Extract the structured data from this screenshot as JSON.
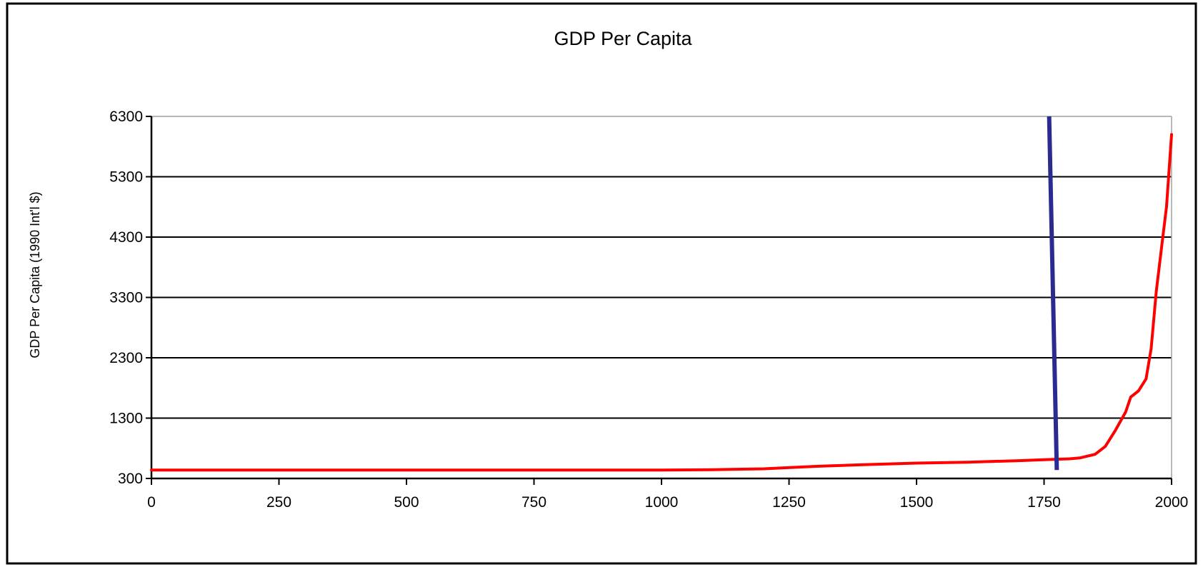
{
  "chart_data": {
    "type": "line",
    "title": "GDP Per Capita",
    "xlabel": "",
    "ylabel": "GDP Per Capita (1990 Int'l $)",
    "xlim": [
      0,
      2000
    ],
    "ylim": [
      300,
      6300
    ],
    "x_ticks": [
      0,
      250,
      500,
      750,
      1000,
      1250,
      1500,
      1750,
      2000
    ],
    "y_ticks": [
      300,
      1300,
      2300,
      3300,
      4300,
      5300,
      6300
    ],
    "grid": "horizontal",
    "legend": "none",
    "series": [
      {
        "color": "#ff0000",
        "points": [
          [
            0,
            440
          ],
          [
            250,
            440
          ],
          [
            500,
            440
          ],
          [
            750,
            440
          ],
          [
            1000,
            440
          ],
          [
            1100,
            445
          ],
          [
            1200,
            460
          ],
          [
            1300,
            500
          ],
          [
            1400,
            530
          ],
          [
            1500,
            555
          ],
          [
            1600,
            570
          ],
          [
            1700,
            595
          ],
          [
            1750,
            610
          ],
          [
            1800,
            625
          ],
          [
            1820,
            640
          ],
          [
            1850,
            700
          ],
          [
            1870,
            830
          ],
          [
            1890,
            1100
          ],
          [
            1910,
            1400
          ],
          [
            1920,
            1650
          ],
          [
            1935,
            1750
          ],
          [
            1950,
            1950
          ],
          [
            1960,
            2450
          ],
          [
            1970,
            3400
          ],
          [
            1980,
            4100
          ],
          [
            1990,
            4800
          ],
          [
            2000,
            6000
          ]
        ]
      }
    ],
    "annotations": [
      {
        "type": "line",
        "color": "#2b2b8f",
        "points": [
          [
            1760,
            6300
          ],
          [
            1775,
            440
          ]
        ]
      }
    ]
  }
}
